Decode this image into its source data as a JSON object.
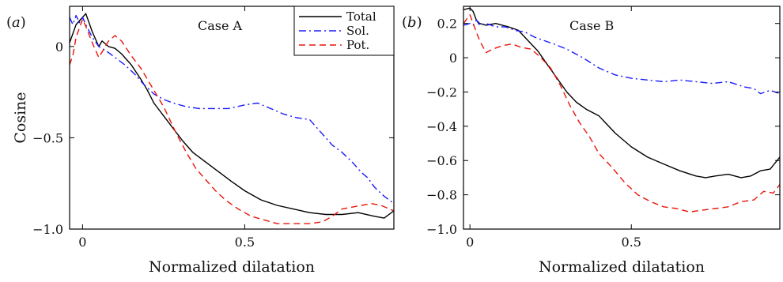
{
  "chart_data": [
    {
      "type": "line",
      "panel_label": "a",
      "annotation": "Case A",
      "xlabel": "Normalized dilatation",
      "ylabel": "Cosine",
      "xlim": [
        -0.04,
        0.96
      ],
      "ylim": [
        -1.0,
        0.22
      ],
      "xticks": [
        0,
        0.5
      ],
      "xtick_labels": [
        "0",
        "0.5"
      ],
      "yticks": [
        0,
        -0.5,
        -1.0
      ],
      "ytick_labels": [
        "0",
        "−0.5",
        "−1.0"
      ],
      "legend": {
        "position": "top-right",
        "entries": [
          "Total",
          "Sol.",
          "Pot."
        ]
      },
      "series": [
        {
          "name": "Total",
          "color": "#000000",
          "dash": "solid",
          "x": [
            -0.04,
            -0.02,
            0.0,
            0.01,
            0.03,
            0.05,
            0.06,
            0.08,
            0.1,
            0.12,
            0.15,
            0.18,
            0.2,
            0.22,
            0.25,
            0.28,
            0.31,
            0.34,
            0.37,
            0.4,
            0.43,
            0.46,
            0.5,
            0.55,
            0.6,
            0.65,
            0.7,
            0.75,
            0.8,
            0.85,
            0.9,
            0.93,
            0.96
          ],
          "y": [
            0.02,
            0.12,
            0.16,
            0.18,
            0.08,
            0.0,
            0.03,
            0.0,
            -0.01,
            -0.04,
            -0.1,
            -0.18,
            -0.24,
            -0.31,
            -0.38,
            -0.45,
            -0.52,
            -0.58,
            -0.62,
            -0.66,
            -0.7,
            -0.74,
            -0.79,
            -0.84,
            -0.87,
            -0.89,
            -0.91,
            -0.92,
            -0.92,
            -0.91,
            -0.93,
            -0.94,
            -0.9
          ]
        },
        {
          "name": "Sol.",
          "color": "#1a1aff",
          "dash": "dashdot",
          "x": [
            -0.04,
            -0.03,
            -0.02,
            -0.01,
            0.0,
            0.01,
            0.03,
            0.05,
            0.07,
            0.1,
            0.13,
            0.16,
            0.19,
            0.22,
            0.25,
            0.28,
            0.32,
            0.36,
            0.4,
            0.45,
            0.5,
            0.54,
            0.58,
            0.62,
            0.66,
            0.7,
            0.72,
            0.74,
            0.77,
            0.8,
            0.83,
            0.86,
            0.88,
            0.9,
            0.93,
            0.96
          ],
          "y": [
            0.16,
            0.12,
            0.17,
            0.13,
            0.16,
            0.12,
            0.05,
            0.0,
            -0.02,
            -0.06,
            -0.1,
            -0.15,
            -0.21,
            -0.26,
            -0.29,
            -0.31,
            -0.33,
            -0.34,
            -0.34,
            -0.34,
            -0.32,
            -0.31,
            -0.34,
            -0.37,
            -0.39,
            -0.4,
            -0.44,
            -0.48,
            -0.54,
            -0.58,
            -0.63,
            -0.69,
            -0.72,
            -0.77,
            -0.82,
            -0.86
          ]
        },
        {
          "name": "Pot.",
          "color": "#e8140a",
          "dash": "dashed",
          "x": [
            -0.04,
            -0.03,
            -0.02,
            -0.01,
            0.0,
            0.01,
            0.03,
            0.05,
            0.07,
            0.08,
            0.1,
            0.12,
            0.15,
            0.18,
            0.21,
            0.25,
            0.29,
            0.32,
            0.35,
            0.38,
            0.41,
            0.44,
            0.48,
            0.52,
            0.56,
            0.6,
            0.65,
            0.7,
            0.74,
            0.77,
            0.8,
            0.83,
            0.86,
            0.89,
            0.92,
            0.96
          ],
          "y": [
            -0.1,
            -0.05,
            0.05,
            0.1,
            0.15,
            0.11,
            0.02,
            -0.06,
            0.0,
            0.03,
            0.06,
            0.03,
            -0.05,
            -0.12,
            -0.21,
            -0.33,
            -0.48,
            -0.58,
            -0.67,
            -0.73,
            -0.79,
            -0.84,
            -0.89,
            -0.93,
            -0.95,
            -0.97,
            -0.97,
            -0.97,
            -0.96,
            -0.93,
            -0.89,
            -0.88,
            -0.87,
            -0.86,
            -0.87,
            -0.9
          ]
        }
      ]
    },
    {
      "type": "line",
      "panel_label": "b",
      "annotation": "Case B",
      "xlabel": "Normalized dilatation",
      "ylabel": "",
      "xlim": [
        -0.02,
        0.96
      ],
      "ylim": [
        -1.0,
        0.3
      ],
      "xticks": [
        0,
        0.5
      ],
      "xtick_labels": [
        "0",
        "0.5"
      ],
      "yticks": [
        0.2,
        0,
        -0.2,
        -0.4,
        -0.6,
        -0.8,
        -1.0
      ],
      "ytick_labels": [
        "0.2",
        "0",
        "−0.2",
        "−0.4",
        "−0.6",
        "−0.8",
        "−1.0"
      ],
      "series": [
        {
          "name": "Total",
          "color": "#000000",
          "dash": "solid",
          "x": [
            -0.02,
            0.0,
            0.01,
            0.02,
            0.03,
            0.05,
            0.08,
            0.1,
            0.12,
            0.15,
            0.18,
            0.21,
            0.24,
            0.27,
            0.3,
            0.33,
            0.36,
            0.4,
            0.45,
            0.5,
            0.55,
            0.6,
            0.65,
            0.7,
            0.73,
            0.76,
            0.8,
            0.84,
            0.87,
            0.9,
            0.93,
            0.96
          ],
          "y": [
            0.28,
            0.29,
            0.27,
            0.22,
            0.2,
            0.19,
            0.2,
            0.19,
            0.18,
            0.16,
            0.1,
            0.04,
            -0.04,
            -0.12,
            -0.2,
            -0.26,
            -0.3,
            -0.34,
            -0.44,
            -0.52,
            -0.58,
            -0.62,
            -0.66,
            -0.69,
            -0.7,
            -0.69,
            -0.68,
            -0.7,
            -0.69,
            -0.66,
            -0.65,
            -0.58
          ]
        },
        {
          "name": "Sol.",
          "color": "#1a1aff",
          "dash": "dashdot",
          "x": [
            -0.02,
            0.0,
            0.01,
            0.02,
            0.03,
            0.05,
            0.08,
            0.11,
            0.14,
            0.17,
            0.2,
            0.23,
            0.26,
            0.3,
            0.35,
            0.4,
            0.45,
            0.5,
            0.55,
            0.6,
            0.65,
            0.7,
            0.75,
            0.8,
            0.85,
            0.88,
            0.9,
            0.93,
            0.96
          ],
          "y": [
            0.19,
            0.2,
            0.19,
            0.22,
            0.19,
            0.2,
            0.18,
            0.18,
            0.16,
            0.15,
            0.12,
            0.1,
            0.08,
            0.05,
            0.0,
            -0.06,
            -0.1,
            -0.12,
            -0.13,
            -0.14,
            -0.13,
            -0.14,
            -0.15,
            -0.14,
            -0.17,
            -0.18,
            -0.21,
            -0.19,
            -0.21
          ]
        },
        {
          "name": "Pot.",
          "color": "#e8140a",
          "dash": "dashed",
          "x": [
            -0.02,
            0.0,
            0.01,
            0.03,
            0.05,
            0.07,
            0.1,
            0.13,
            0.16,
            0.19,
            0.22,
            0.25,
            0.28,
            0.31,
            0.34,
            0.37,
            0.4,
            0.44,
            0.48,
            0.52,
            0.56,
            0.6,
            0.64,
            0.68,
            0.72,
            0.76,
            0.8,
            0.84,
            0.88,
            0.91,
            0.94,
            0.96
          ],
          "y": [
            0.2,
            0.25,
            0.2,
            0.1,
            0.03,
            0.05,
            0.07,
            0.08,
            0.06,
            0.05,
            0.0,
            -0.06,
            -0.16,
            -0.28,
            -0.38,
            -0.46,
            -0.56,
            -0.64,
            -0.73,
            -0.8,
            -0.84,
            -0.87,
            -0.88,
            -0.9,
            -0.89,
            -0.88,
            -0.87,
            -0.84,
            -0.83,
            -0.78,
            -0.79,
            -0.74
          ]
        }
      ]
    }
  ]
}
